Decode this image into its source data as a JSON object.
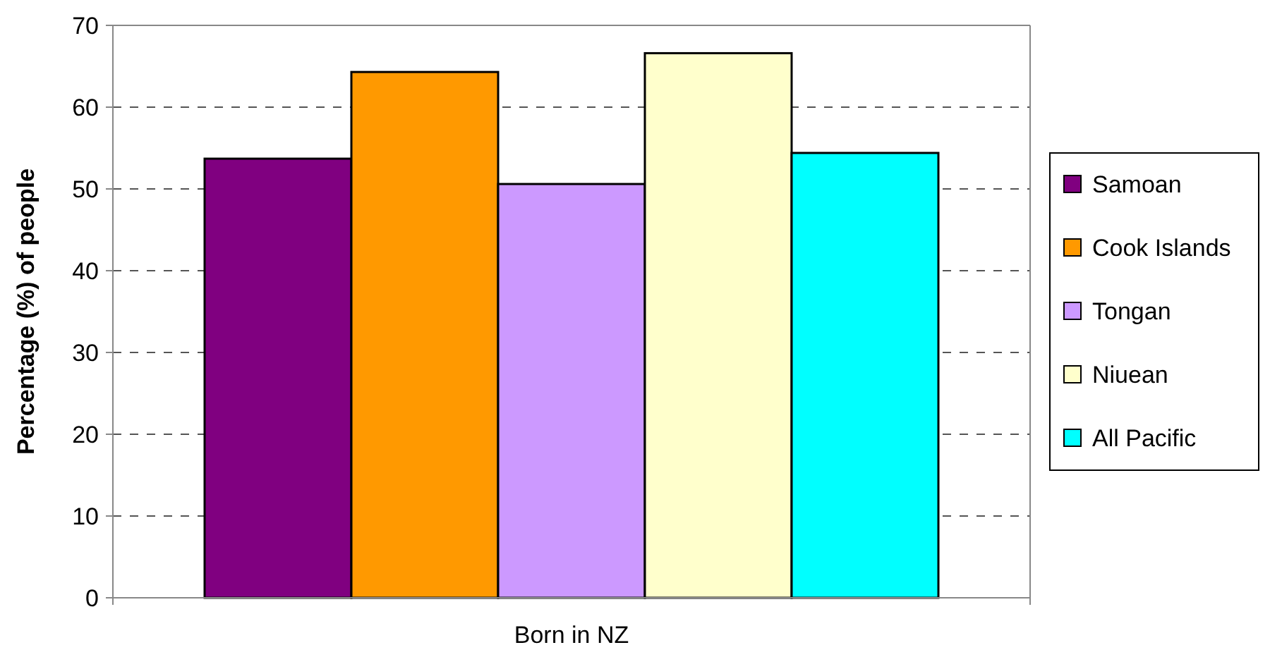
{
  "chart_data": {
    "type": "bar",
    "categories": [
      "Born in NZ"
    ],
    "ylabel": "Percentage (%) of people",
    "ylim": [
      0,
      70
    ],
    "yticks": [
      0,
      10,
      20,
      30,
      40,
      50,
      60,
      70
    ],
    "grid": "y",
    "legend": "right",
    "series": [
      {
        "name": "Samoan",
        "color": "#800080",
        "values": [
          53.7
        ]
      },
      {
        "name": "Cook Islands",
        "color": "#ff9900",
        "values": [
          64.3
        ]
      },
      {
        "name": "Tongan",
        "color": "#cc99ff",
        "values": [
          50.6
        ]
      },
      {
        "name": "Niuean",
        "color": "#ffffcc",
        "values": [
          66.6
        ]
      },
      {
        "name": "All Pacific",
        "color": "#00ffff",
        "values": [
          54.4
        ]
      }
    ]
  }
}
